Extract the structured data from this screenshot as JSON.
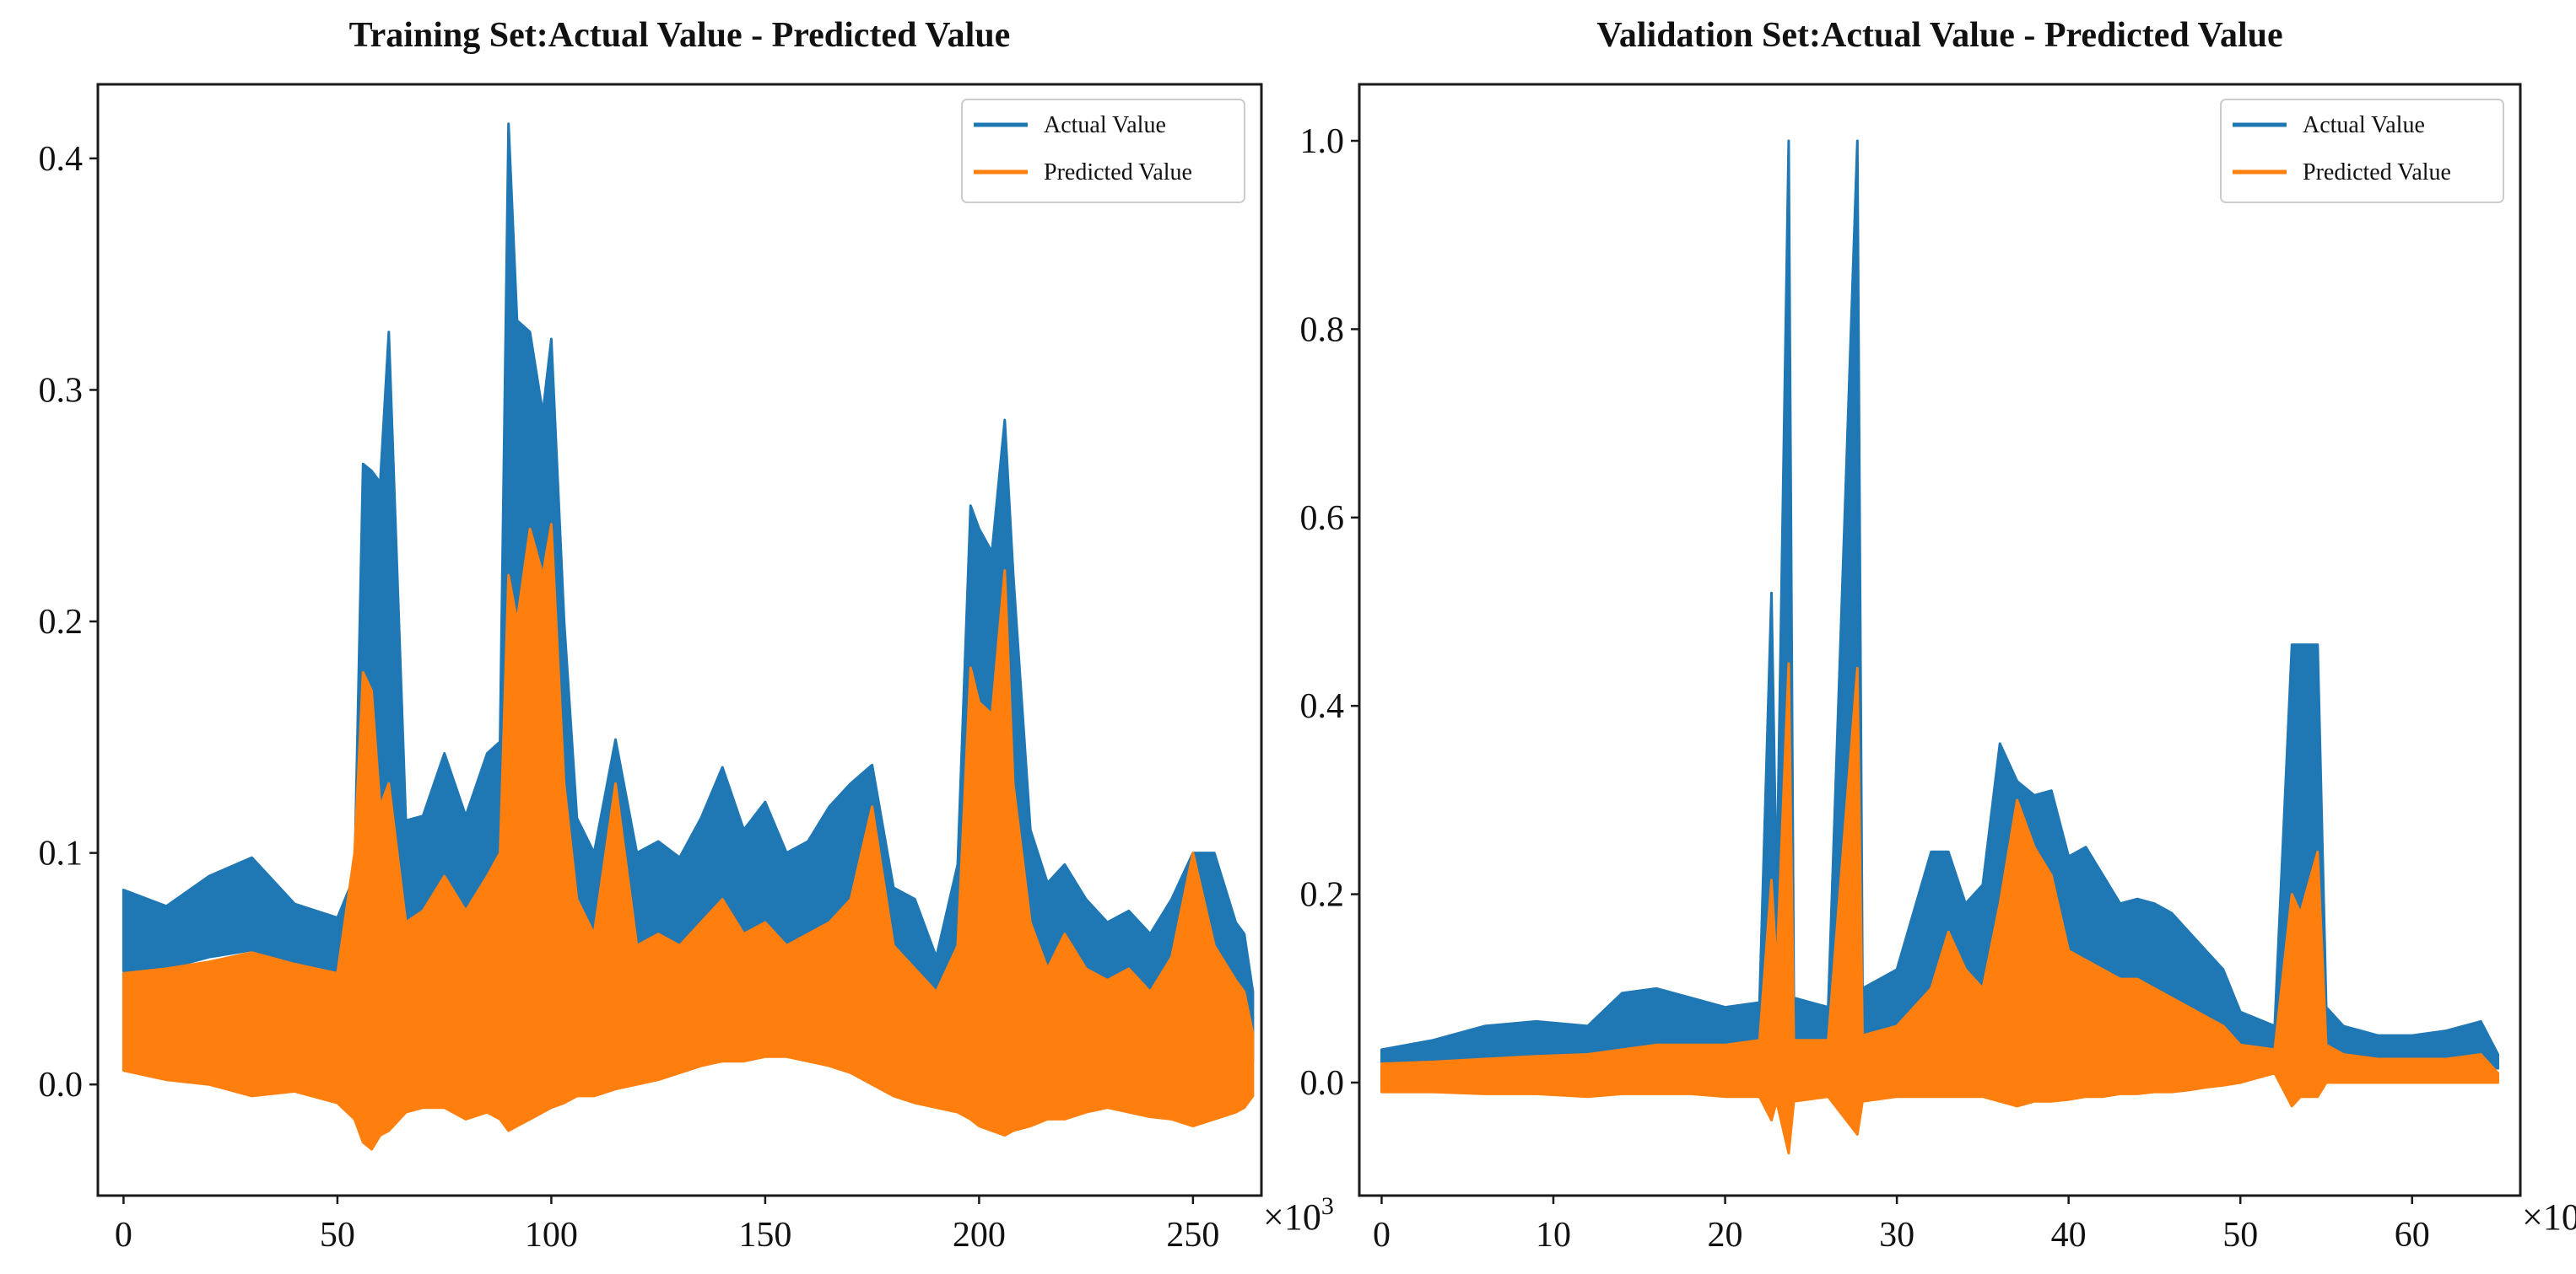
{
  "chart_data": [
    {
      "type": "line",
      "title": "Training Set:Actual Value - Predicted Value",
      "xlabel": "",
      "ylabel": "",
      "x_multiplier": "×10",
      "x_multiplier_exp": "3",
      "xlim": [
        -6,
        266
      ],
      "ylim": [
        -0.048,
        0.432
      ],
      "xticks": [
        0,
        50,
        100,
        150,
        200,
        250
      ],
      "xtick_labels": [
        "0",
        "50",
        "100",
        "150",
        "200",
        "250"
      ],
      "yticks": [
        0.0,
        0.1,
        0.2,
        0.3,
        0.4
      ],
      "ytick_labels": [
        "0.0",
        "0.1",
        "0.2",
        "0.3",
        "0.4"
      ],
      "legend_position": "top-right",
      "series": [
        {
          "name": "Actual Value",
          "color": "#1f77b4",
          "style": "band",
          "x": [
            0,
            10,
            20,
            30,
            40,
            50,
            54,
            56,
            58,
            60,
            62,
            66,
            70,
            75,
            80,
            85,
            88,
            90,
            92,
            95,
            98,
            100,
            103,
            106,
            110,
            115,
            120,
            125,
            130,
            135,
            140,
            145,
            150,
            155,
            160,
            165,
            170,
            175,
            180,
            185,
            190,
            195,
            198,
            200,
            203,
            206,
            208,
            212,
            216,
            220,
            225,
            230,
            235,
            240,
            245,
            250,
            255,
            260,
            262,
            264
          ],
          "upper": [
            0.084,
            0.077,
            0.09,
            0.098,
            0.078,
            0.072,
            0.09,
            0.268,
            0.265,
            0.26,
            0.325,
            0.114,
            0.116,
            0.143,
            0.116,
            0.143,
            0.148,
            0.415,
            0.33,
            0.325,
            0.29,
            0.322,
            0.2,
            0.115,
            0.1,
            0.149,
            0.1,
            0.105,
            0.098,
            0.115,
            0.137,
            0.11,
            0.122,
            0.1,
            0.105,
            0.12,
            0.13,
            0.138,
            0.085,
            0.08,
            0.055,
            0.095,
            0.25,
            0.24,
            0.23,
            0.287,
            0.22,
            0.11,
            0.087,
            0.095,
            0.08,
            0.07,
            0.075,
            0.065,
            0.08,
            0.1,
            0.1,
            0.07,
            0.065,
            0.04
          ],
          "lower": [
            0.049,
            0.05,
            0.055,
            0.058,
            0.05,
            0.045,
            0.04,
            0.1,
            0.1,
            0.08,
            0.1,
            0.065,
            0.06,
            0.065,
            0.06,
            0.07,
            0.08,
            0.21,
            0.18,
            0.2,
            0.19,
            0.17,
            0.12,
            0.08,
            0.06,
            0.06,
            0.06,
            0.065,
            0.06,
            0.06,
            0.065,
            0.06,
            0.065,
            0.06,
            0.06,
            0.065,
            0.07,
            0.075,
            0.05,
            0.04,
            0.03,
            0.045,
            0.15,
            0.15,
            0.14,
            0.15,
            0.12,
            0.06,
            0.045,
            0.045,
            0.045,
            0.04,
            0.04,
            0.035,
            0.04,
            0.045,
            0.04,
            0.03,
            0.025,
            0.01
          ]
        },
        {
          "name": "Predicted Value",
          "color": "#ff7f0e",
          "style": "band",
          "x": [
            0,
            10,
            20,
            30,
            40,
            50,
            54,
            56,
            58,
            60,
            62,
            66,
            70,
            75,
            80,
            85,
            88,
            90,
            92,
            95,
            98,
            100,
            103,
            106,
            110,
            115,
            120,
            125,
            130,
            135,
            140,
            145,
            150,
            155,
            160,
            165,
            170,
            175,
            180,
            185,
            190,
            195,
            198,
            200,
            203,
            206,
            208,
            212,
            216,
            220,
            225,
            230,
            235,
            240,
            245,
            250,
            255,
            260,
            262,
            264
          ],
          "upper": [
            0.048,
            0.05,
            0.053,
            0.057,
            0.052,
            0.048,
            0.1,
            0.178,
            0.17,
            0.12,
            0.13,
            0.07,
            0.075,
            0.09,
            0.075,
            0.09,
            0.1,
            0.22,
            0.2,
            0.24,
            0.22,
            0.242,
            0.13,
            0.08,
            0.065,
            0.13,
            0.06,
            0.065,
            0.06,
            0.07,
            0.08,
            0.065,
            0.07,
            0.06,
            0.065,
            0.07,
            0.08,
            0.12,
            0.06,
            0.05,
            0.04,
            0.06,
            0.18,
            0.165,
            0.16,
            0.222,
            0.13,
            0.07,
            0.05,
            0.065,
            0.05,
            0.045,
            0.05,
            0.04,
            0.055,
            0.1,
            0.06,
            0.045,
            0.04,
            0.022
          ],
          "lower": [
            0.006,
            0.002,
            0.0,
            -0.005,
            -0.003,
            -0.008,
            -0.015,
            -0.025,
            -0.028,
            -0.022,
            -0.02,
            -0.012,
            -0.01,
            -0.01,
            -0.015,
            -0.012,
            -0.015,
            -0.02,
            -0.018,
            -0.015,
            -0.012,
            -0.01,
            -0.008,
            -0.005,
            -0.005,
            -0.002,
            0.0,
            0.002,
            0.005,
            0.008,
            0.01,
            0.01,
            0.012,
            0.012,
            0.01,
            0.008,
            0.005,
            0.0,
            -0.005,
            -0.008,
            -0.01,
            -0.012,
            -0.015,
            -0.018,
            -0.02,
            -0.022,
            -0.02,
            -0.018,
            -0.015,
            -0.015,
            -0.012,
            -0.01,
            -0.012,
            -0.014,
            -0.015,
            -0.018,
            -0.015,
            -0.012,
            -0.01,
            -0.005
          ]
        }
      ]
    },
    {
      "type": "line",
      "title": "Validation Set:Actual Value - Predicted Value",
      "xlabel": "",
      "ylabel": "",
      "x_multiplier": "×10",
      "x_multiplier_exp": "3",
      "xlim": [
        -1.3,
        66.3
      ],
      "ylim": [
        -0.12,
        1.06
      ],
      "xticks": [
        0,
        10,
        20,
        30,
        40,
        50,
        60
      ],
      "xtick_labels": [
        "0",
        "10",
        "20",
        "30",
        "40",
        "50",
        "60"
      ],
      "yticks": [
        0.0,
        0.2,
        0.4,
        0.6,
        0.8,
        1.0
      ],
      "ytick_labels": [
        "0.0",
        "0.2",
        "0.4",
        "0.6",
        "0.8",
        "1.0"
      ],
      "legend_position": "top-right",
      "series": [
        {
          "name": "Actual Value",
          "color": "#1f77b4",
          "style": "band",
          "x": [
            0,
            3,
            6,
            9,
            12,
            14,
            16,
            18,
            20,
            22,
            22.7,
            23,
            23.7,
            24,
            26,
            27.7,
            28,
            30,
            32,
            33,
            34,
            35,
            36,
            37,
            38,
            39,
            40,
            41,
            42,
            43,
            44,
            45,
            46,
            47,
            48,
            49,
            50,
            52,
            53,
            53.5,
            54.5,
            55,
            56,
            58,
            60,
            62,
            64,
            65
          ],
          "upper": [
            0.035,
            0.045,
            0.06,
            0.065,
            0.06,
            0.095,
            0.1,
            0.09,
            0.08,
            0.085,
            0.52,
            0.2,
            1.0,
            0.09,
            0.08,
            1.0,
            0.1,
            0.12,
            0.245,
            0.245,
            0.19,
            0.21,
            0.36,
            0.32,
            0.305,
            0.31,
            0.24,
            0.25,
            0.22,
            0.19,
            0.195,
            0.19,
            0.18,
            0.16,
            0.14,
            0.12,
            0.075,
            0.06,
            0.465,
            0.465,
            0.465,
            0.08,
            0.06,
            0.05,
            0.05,
            0.055,
            0.065,
            0.03
          ],
          "lower": [
            0.015,
            0.015,
            0.02,
            0.025,
            0.025,
            0.03,
            0.035,
            0.035,
            0.035,
            0.035,
            0.06,
            0.04,
            0.06,
            0.035,
            0.04,
            0.06,
            0.04,
            0.045,
            0.06,
            0.065,
            0.06,
            0.07,
            0.09,
            0.08,
            0.08,
            0.08,
            0.07,
            0.07,
            0.07,
            0.06,
            0.06,
            0.06,
            0.06,
            0.055,
            0.05,
            0.045,
            0.04,
            0.03,
            0.06,
            0.05,
            0.05,
            0.03,
            0.025,
            0.02,
            0.02,
            0.02,
            0.02,
            0.015
          ]
        },
        {
          "name": "Predicted Value",
          "color": "#ff7f0e",
          "style": "band",
          "x": [
            0,
            3,
            6,
            9,
            12,
            14,
            16,
            18,
            20,
            22,
            22.7,
            23,
            23.7,
            24,
            26,
            27.7,
            28,
            30,
            32,
            33,
            34,
            35,
            36,
            37,
            38,
            39,
            40,
            41,
            42,
            43,
            44,
            45,
            46,
            47,
            48,
            49,
            50,
            52,
            53,
            53.5,
            54.5,
            55,
            56,
            58,
            60,
            62,
            64,
            65
          ],
          "upper": [
            0.02,
            0.022,
            0.025,
            0.028,
            0.03,
            0.035,
            0.04,
            0.04,
            0.04,
            0.045,
            0.215,
            0.12,
            0.445,
            0.045,
            0.045,
            0.44,
            0.05,
            0.06,
            0.1,
            0.16,
            0.12,
            0.1,
            0.19,
            0.3,
            0.25,
            0.22,
            0.14,
            0.13,
            0.12,
            0.11,
            0.11,
            0.1,
            0.09,
            0.08,
            0.07,
            0.06,
            0.04,
            0.035,
            0.2,
            0.18,
            0.245,
            0.04,
            0.03,
            0.025,
            0.025,
            0.025,
            0.03,
            0.01
          ],
          "lower": [
            -0.01,
            -0.01,
            -0.012,
            -0.012,
            -0.015,
            -0.012,
            -0.012,
            -0.012,
            -0.015,
            -0.015,
            -0.04,
            -0.02,
            -0.075,
            -0.02,
            -0.015,
            -0.055,
            -0.02,
            -0.015,
            -0.015,
            -0.015,
            -0.015,
            -0.015,
            -0.02,
            -0.025,
            -0.02,
            -0.02,
            -0.018,
            -0.015,
            -0.015,
            -0.012,
            -0.012,
            -0.01,
            -0.01,
            -0.008,
            -0.005,
            -0.003,
            0.0,
            0.01,
            -0.025,
            -0.015,
            -0.015,
            0.0,
            0.0,
            0.0,
            0.0,
            0.0,
            0.0,
            0.0
          ]
        }
      ]
    }
  ]
}
